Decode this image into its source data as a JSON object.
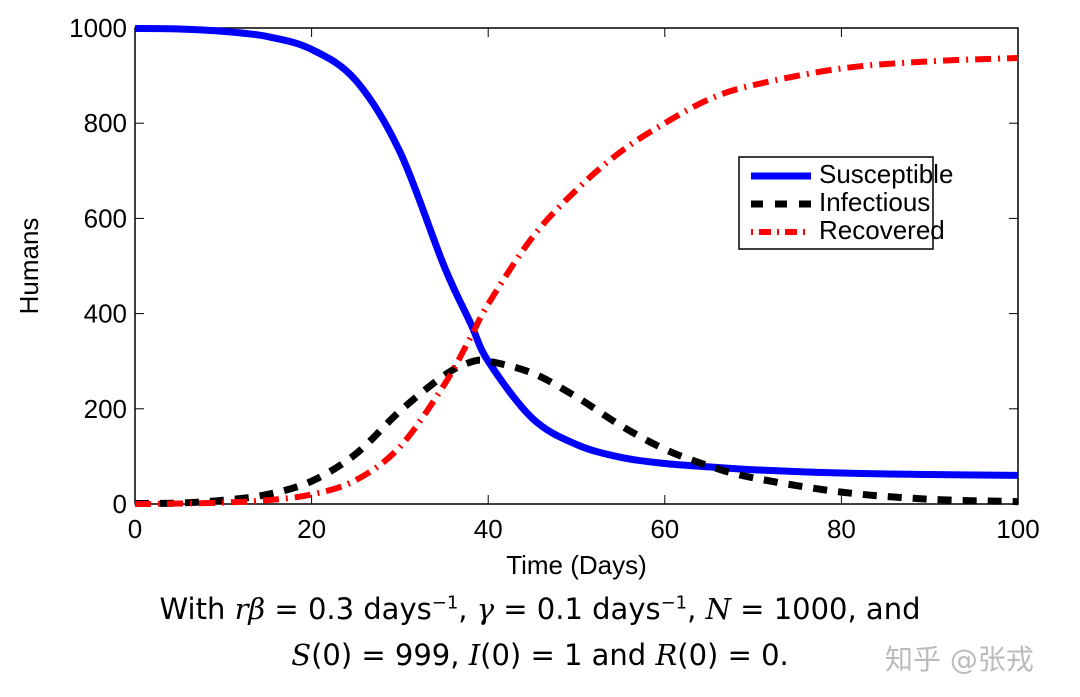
{
  "chart_data": {
    "type": "line",
    "xlabel": "Time (Days)",
    "ylabel": "Humans",
    "xlim": [
      0,
      100
    ],
    "ylim": [
      0,
      1000
    ],
    "xticks": [
      "0",
      "20",
      "40",
      "60",
      "80",
      "100"
    ],
    "yticks": [
      "0",
      "200",
      "400",
      "600",
      "800",
      "1000"
    ],
    "legend_position": "right-center",
    "x": [
      0,
      5,
      10,
      15,
      20,
      25,
      30,
      35,
      38,
      40,
      45,
      50,
      55,
      60,
      65,
      70,
      80,
      90,
      100
    ],
    "series": [
      {
        "name": "Susceptible",
        "color": "#0000ff",
        "style": "solid",
        "values": [
          999,
          998,
          993,
          982,
          955,
          890,
          740,
          500,
          380,
          300,
          180,
          125,
          98,
          85,
          78,
          72,
          65,
          62,
          60
        ]
      },
      {
        "name": "Infectious",
        "color": "#000000",
        "style": "dashed",
        "values": [
          1,
          2,
          8,
          20,
          48,
          105,
          195,
          270,
          298,
          300,
          275,
          225,
          165,
          115,
          80,
          55,
          25,
          10,
          5
        ]
      },
      {
        "name": "Recovered",
        "color": "#ff0000",
        "style": "dashdot",
        "values": [
          0,
          1,
          3,
          8,
          20,
          50,
          120,
          250,
          350,
          420,
          560,
          660,
          740,
          800,
          850,
          880,
          915,
          930,
          937
        ]
      }
    ]
  },
  "caption": {
    "line1": [
      "With ",
      "rβ",
      " = 0.3 days",
      "−1",
      ", ",
      "γ",
      " = 0.1 days",
      "−1",
      ", ",
      "N",
      " = 1000, and"
    ],
    "line2": [
      "S",
      "(0) = 999, ",
      "I",
      "(0) = 1 and ",
      "R",
      "(0) = 0."
    ]
  },
  "watermark": "知乎 @张戎"
}
